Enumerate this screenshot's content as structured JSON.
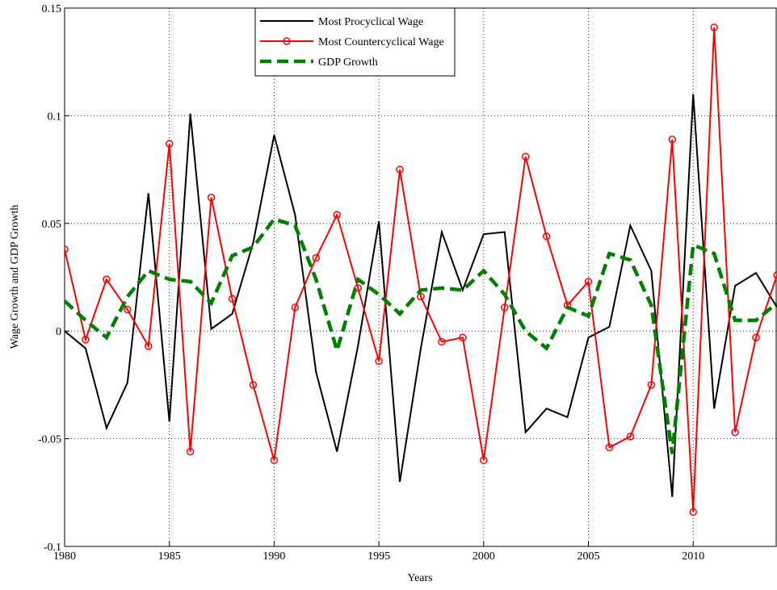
{
  "chart_data": {
    "type": "line",
    "xlabel": "Years",
    "ylabel": "Wage Growth and GDP Growth",
    "x": [
      1980,
      1981,
      1982,
      1983,
      1984,
      1985,
      1986,
      1987,
      1988,
      1989,
      1990,
      1991,
      1992,
      1993,
      1994,
      1995,
      1996,
      1997,
      1998,
      1999,
      2000,
      2001,
      2002,
      2003,
      2004,
      2005,
      2006,
      2007,
      2008,
      2009,
      2010,
      2011,
      2012,
      2013,
      2014
    ],
    "series": [
      {
        "name": "Most Procyclical Wage",
        "color": "#000000",
        "marker": false,
        "dashed": false,
        "values": [
          0.0,
          -0.008,
          -0.045,
          -0.024,
          0.064,
          -0.042,
          0.101,
          0.001,
          0.008,
          0.041,
          0.091,
          0.054,
          -0.019,
          -0.056,
          -0.007,
          0.051,
          -0.07,
          -0.008,
          0.046,
          0.019,
          0.045,
          0.046,
          -0.047,
          -0.036,
          -0.04,
          -0.003,
          0.002,
          0.049,
          0.028,
          -0.077,
          0.11,
          -0.036,
          0.021,
          0.027,
          0.011
        ]
      },
      {
        "name": "Most Countercyclical Wage",
        "color": "#ff0000",
        "marker": true,
        "dashed": false,
        "values": [
          0.038,
          -0.004,
          0.024,
          0.01,
          -0.007,
          0.087,
          -0.056,
          0.062,
          0.015,
          -0.025,
          -0.06,
          0.011,
          0.034,
          0.054,
          0.02,
          -0.014,
          0.075,
          0.016,
          -0.005,
          -0.003,
          -0.06,
          0.011,
          0.081,
          0.044,
          0.012,
          0.023,
          -0.054,
          -0.049,
          -0.025,
          0.089,
          -0.084,
          0.141,
          -0.047,
          -0.003,
          0.026
        ]
      },
      {
        "name": "GDP Growth",
        "color": "#008000",
        "marker": false,
        "dashed": true,
        "values": [
          0.014,
          0.005,
          -0.003,
          0.016,
          0.028,
          0.024,
          0.023,
          0.013,
          0.035,
          0.039,
          0.052,
          0.049,
          0.024,
          -0.009,
          0.024,
          0.017,
          0.008,
          0.019,
          0.02,
          0.019,
          0.028,
          0.017,
          0.0,
          -0.008,
          0.011,
          0.007,
          0.036,
          0.033,
          0.012,
          -0.057,
          0.04,
          0.036,
          0.005,
          0.005,
          0.013
        ]
      }
    ],
    "xlim": [
      1980,
      2014
    ],
    "xticks": [
      1980,
      1985,
      1990,
      1995,
      2000,
      2005,
      2010
    ],
    "ylim": [
      -0.1,
      0.15
    ],
    "yticks": [
      -0.1,
      -0.05,
      0,
      0.05,
      0.1,
      0.15
    ],
    "grid": true,
    "legend": "top"
  }
}
